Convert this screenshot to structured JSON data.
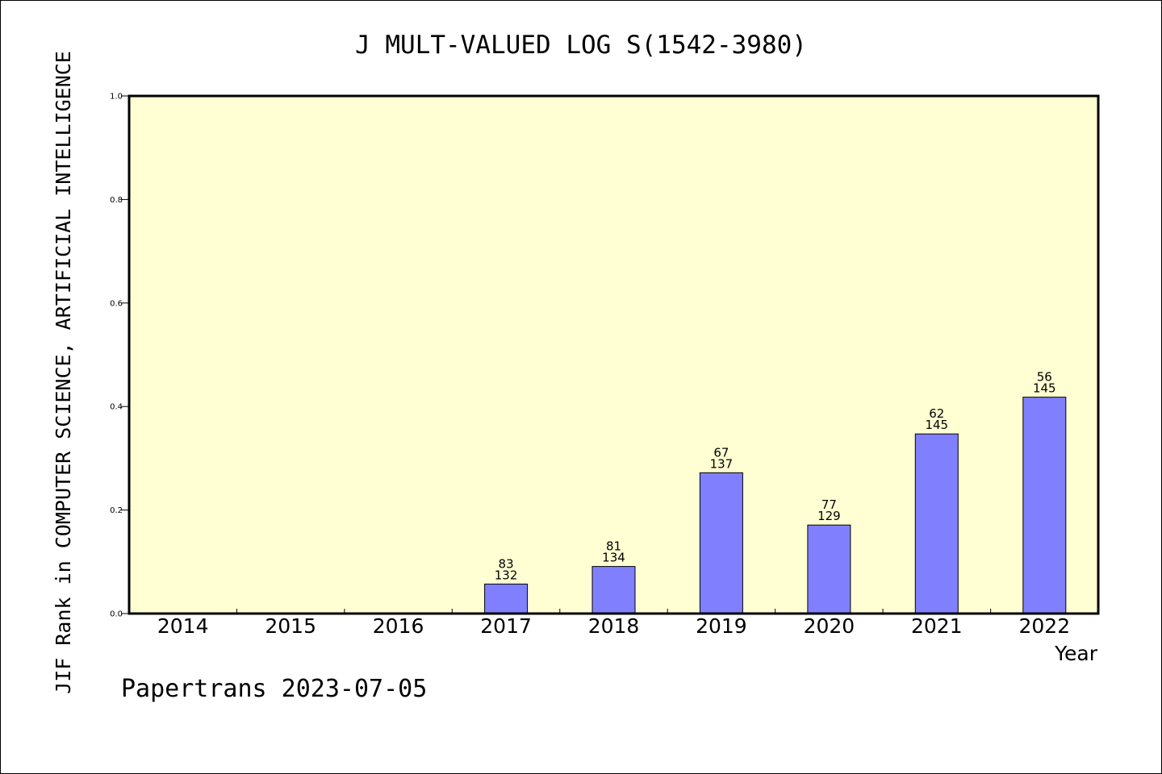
{
  "chart_data": {
    "type": "bar",
    "title": "J MULT-VALUED LOG S(1542-3980)",
    "ylabel": "JIF Rank in COMPUTER SCIENCE, ARTIFICIAL INTELLIGENCE",
    "xlabel": "Year",
    "categories": [
      "2014",
      "2015",
      "2016",
      "2017",
      "2018",
      "2019",
      "2020",
      "2021",
      "2022"
    ],
    "values": [
      null,
      null,
      null,
      0.057,
      0.091,
      0.272,
      0.171,
      0.347,
      0.418
    ],
    "bar_labels": [
      null,
      null,
      null,
      [
        "83",
        "132"
      ],
      [
        "81",
        "134"
      ],
      [
        "67",
        "137"
      ],
      [
        "77",
        "129"
      ],
      [
        "62",
        "145"
      ],
      [
        "56",
        "145"
      ]
    ],
    "ylim": [
      0,
      1.0
    ],
    "yticks": [
      "0.0",
      "0.2",
      "0.4",
      "0.6",
      "0.8",
      "1.0"
    ],
    "grid": false,
    "colors": {
      "plot_background": "#FFFFD3",
      "bar_fill": "#8080FF",
      "bar_stroke": "#000000"
    }
  },
  "footer": {
    "text": "Papertrans 2023-07-05"
  }
}
